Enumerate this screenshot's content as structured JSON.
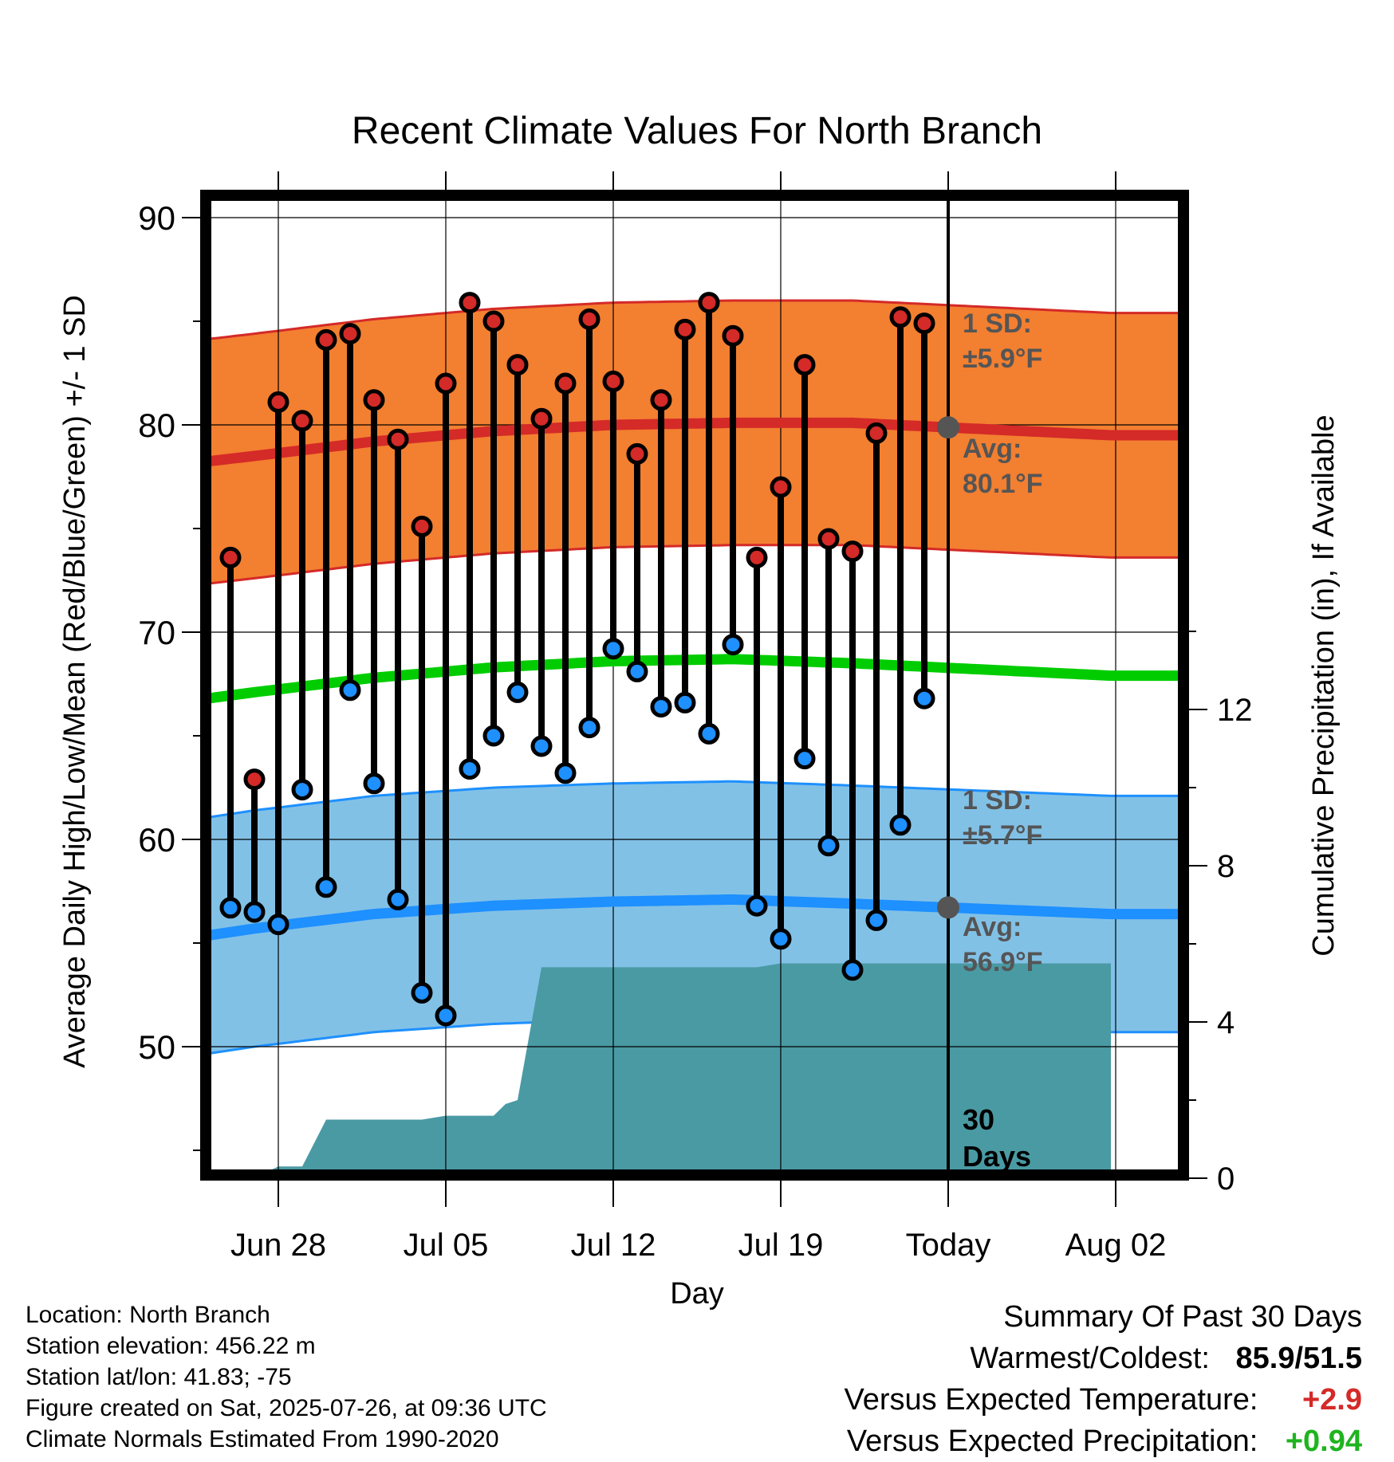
{
  "chart_data": {
    "type": "line",
    "title": "Recent Climate Values For North Branch",
    "xlabel": "Day",
    "ylabel": "Average Daily High/Low/Mean (Red/Blue/Green) +/- 1 SD",
    "y2label": "Cumulative Precipitation (in), If Available",
    "ylim": [
      44,
      91
    ],
    "y2lim": [
      0,
      24
    ],
    "yticks": [
      "50",
      "60",
      "70",
      "80",
      "90"
    ],
    "y2ticks": [
      "0",
      "4",
      "8",
      "12"
    ],
    "xticks": [
      "Jun 28",
      "Jul 05",
      "Jul 12",
      "Jul 19",
      "Today",
      "Aug 02"
    ],
    "today_index": 30,
    "days_label": [
      "30",
      "Days"
    ],
    "colors": {
      "high_band": "#f37f30",
      "high_line": "#d42a28",
      "low_band": "#82c1e6",
      "low_line": "#1e90ff",
      "mean_line": "#00cc00",
      "precip": "#4a9aa4",
      "high_dot": "#d42a28",
      "low_dot": "#1e90ff",
      "annotation": "#555555"
    },
    "normals": {
      "high_avg": [
        77.8,
        78.5,
        79.2,
        79.7,
        80.0,
        80.1,
        80.1,
        79.5
      ],
      "high_sd": 5.9,
      "low_avg": [
        54.8,
        55.7,
        56.4,
        56.8,
        57.0,
        57.1,
        56.9,
        56.4
      ],
      "low_sd": 5.7,
      "mean_avg": [
        66.3,
        67.1,
        67.8,
        68.3,
        68.6,
        68.7,
        68.5,
        67.9
      ],
      "x_days": [
        -3.2,
        2,
        7,
        12,
        17,
        22,
        27,
        37.8
      ]
    },
    "annotations": {
      "high_sd_label": "1 SD:",
      "high_sd_value": "±5.9°F",
      "high_avg_label": "Avg:",
      "high_avg_value": "80.1°F",
      "low_sd_label": "1 SD:",
      "low_sd_value": "±5.7°F",
      "low_avg_label": "Avg:",
      "low_avg_value": "56.9°F"
    },
    "series": [
      {
        "name": "High",
        "values": [
          73.6,
          62.9,
          81.1,
          80.2,
          84.1,
          84.4,
          81.2,
          79.3,
          75.1,
          82.0,
          85.9,
          85.0,
          82.9,
          80.3,
          82.0,
          85.1,
          82.1,
          78.6,
          81.2,
          84.6,
          85.9,
          84.3,
          73.6,
          77.0,
          82.9,
          74.5,
          73.9,
          79.6,
          85.2,
          84.9
        ]
      },
      {
        "name": "Low",
        "values": [
          56.7,
          56.5,
          55.9,
          62.4,
          57.7,
          67.2,
          62.7,
          57.1,
          52.6,
          51.5,
          63.4,
          65.0,
          67.1,
          64.5,
          63.2,
          65.4,
          69.2,
          68.1,
          66.4,
          66.6,
          65.1,
          69.4,
          56.8,
          55.2,
          63.9,
          59.7,
          53.7,
          56.1,
          60.7,
          66.8
        ]
      }
    ],
    "precip": {
      "x": [
        -3.2,
        2,
        3,
        4,
        5,
        6,
        7,
        8,
        9,
        10,
        11,
        12,
        12.5,
        13,
        14,
        15,
        16,
        17,
        18,
        19,
        20,
        21,
        22,
        23,
        24,
        37.8
      ],
      "values": [
        0,
        0,
        0.3,
        0.3,
        1.5,
        1.5,
        1.5,
        1.5,
        1.5,
        1.6,
        1.6,
        1.6,
        1.9,
        2.0,
        5.4,
        5.4,
        5.4,
        5.4,
        5.4,
        5.4,
        5.4,
        5.4,
        5.4,
        5.4,
        5.5,
        5.5
      ]
    }
  },
  "footer": {
    "location": "Location: North Branch",
    "elevation": "Station elevation: 456.22 m",
    "latlon": "Station lat/lon: 41.83; -75",
    "created": "Figure created on Sat, 2025-07-26, at 09:36 UTC",
    "normals": "Climate Normals Estimated From 1990-2020"
  },
  "summary": {
    "heading": "Summary Of Past 30 Days",
    "warm_cold_label": "Warmest/Coldest:",
    "warm_cold_value": "85.9/51.5",
    "temp_label": "Versus Expected Temperature:",
    "temp_value": "+2.9",
    "temp_color": "#d42a28",
    "precip_label": "Versus Expected Precipitation:",
    "precip_value": "+0.94",
    "precip_color": "#1fb41f"
  }
}
